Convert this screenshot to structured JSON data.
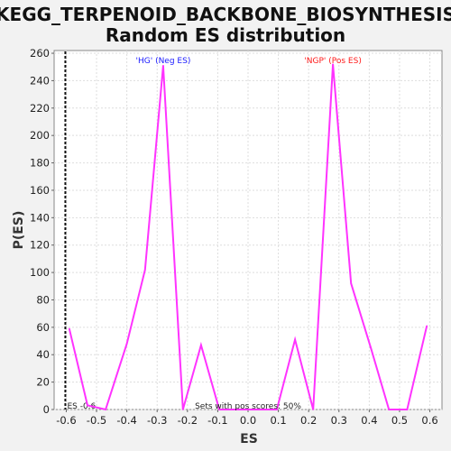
{
  "chart_data": {
    "type": "line",
    "title": "KEGG_TERPENOID_BACKBONE_BIOSYNTHESIS:",
    "subtitle": "Random ES distribution",
    "xlabel": "ES",
    "ylabel": "P(ES)",
    "xlim": [
      -0.64,
      0.64
    ],
    "ylim": [
      0,
      262
    ],
    "xticks": [
      -0.6,
      -0.5,
      -0.4,
      -0.3,
      -0.2,
      -0.1,
      0.0,
      0.1,
      0.2,
      0.3,
      0.4,
      0.5,
      0.6
    ],
    "xtick_labels": [
      "-0.6",
      "-0.5",
      "-0.4",
      "-0.3",
      "-0.2",
      "-0.1",
      "0.0",
      "0.1",
      "0.2",
      "0.3",
      "0.4",
      "0.5",
      "0.6"
    ],
    "yticks": [
      0,
      20,
      40,
      60,
      80,
      100,
      120,
      140,
      160,
      180,
      200,
      220,
      240,
      260
    ],
    "ytick_labels": [
      "0",
      "20",
      "40",
      "60",
      "80",
      "100",
      "120",
      "140",
      "160",
      "180",
      "200",
      "220",
      "240",
      "260"
    ],
    "grid": true,
    "series": [
      {
        "color": "#ff33ff",
        "x": [
          -0.59,
          -0.53,
          -0.47,
          -0.4,
          -0.34,
          -0.28,
          -0.215,
          -0.155,
          -0.095,
          -0.03,
          0.035,
          0.095,
          0.155,
          0.215,
          0.28,
          0.34,
          0.405,
          0.465,
          0.525,
          0.59
        ],
        "values": [
          59,
          3,
          0,
          48,
          102,
          251,
          0,
          47,
          0,
          0,
          0,
          0,
          51,
          0,
          252,
          92,
          45,
          0,
          0,
          61
        ]
      }
    ],
    "es_marker": {
      "x": -0.6,
      "label": "ES -0.6"
    },
    "annotations": [
      {
        "text": "'HG' (Neg ES)",
        "color": "#1a1aff"
      },
      {
        "text": "'NGP' (Pos ES)",
        "color": "#ff1a1a"
      },
      {
        "text": "Sets with pos scores: 50%",
        "color": "#222222"
      }
    ]
  }
}
